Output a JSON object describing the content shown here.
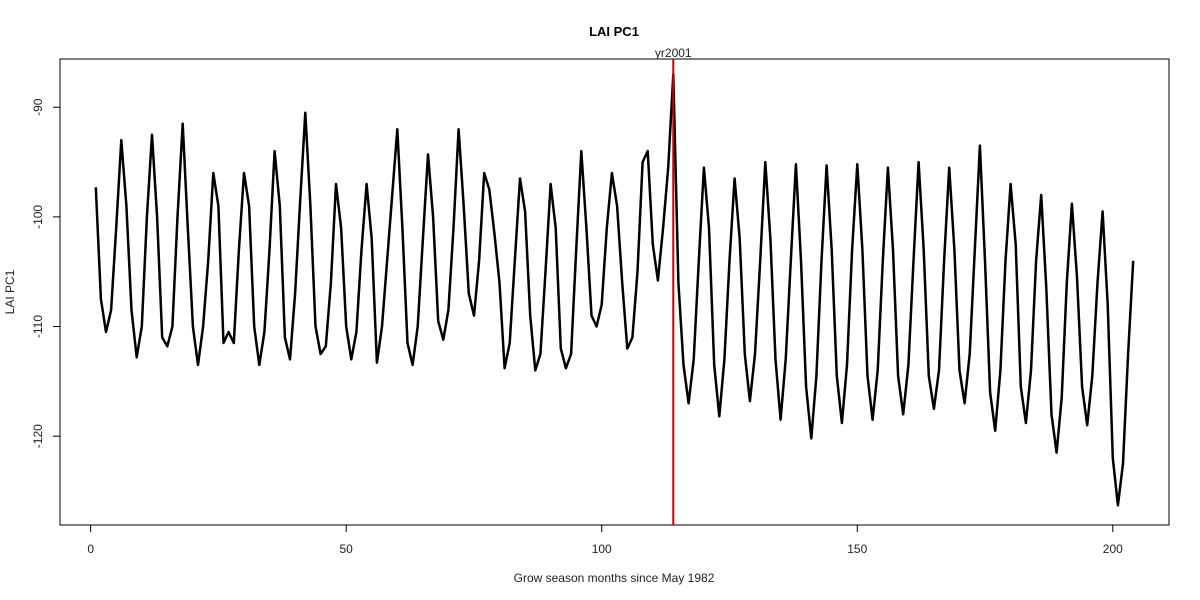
{
  "chart_data": {
    "type": "line",
    "title": "LAI PC1",
    "xlabel": "Grow season months since May 1982",
    "ylabel": "LAI PC1",
    "xlim": [
      -6,
      211
    ],
    "ylim": [
      -128.1,
      -85.6
    ],
    "x_ticks": [
      0,
      50,
      100,
      150,
      200
    ],
    "x_tick_labels": [
      "0",
      "50",
      "100",
      "150",
      "200"
    ],
    "y_ticks": [
      -120,
      -110,
      -100,
      -90
    ],
    "y_tick_labels": [
      "-120",
      "-110",
      "-100",
      "-90"
    ],
    "grid": false,
    "legend": "none",
    "line_color": "#000000",
    "series": [
      {
        "x": [
          1,
          2,
          3,
          4,
          5,
          6,
          7,
          8,
          9,
          10,
          11,
          12,
          13,
          14,
          15,
          16,
          17,
          18,
          19,
          20,
          21,
          22,
          23,
          24,
          25,
          26,
          27,
          28,
          29,
          30,
          31,
          32,
          33,
          34,
          35,
          36,
          37,
          38,
          39,
          40,
          41,
          42,
          43,
          44,
          45,
          46,
          47,
          48,
          49,
          50,
          51,
          52,
          53,
          54,
          55,
          56,
          57,
          58,
          59,
          60,
          61,
          62,
          63,
          64,
          65,
          66,
          67,
          68,
          69,
          70,
          71,
          72,
          73,
          74,
          75,
          76,
          77,
          78,
          79,
          80,
          81,
          82,
          83,
          84,
          85,
          86,
          87,
          88,
          89,
          90,
          91,
          92,
          93,
          94,
          95,
          96,
          97,
          98,
          99,
          100,
          101,
          102,
          103,
          104,
          105,
          106,
          107,
          108,
          109,
          110,
          111,
          112,
          113,
          114,
          115,
          116,
          117,
          118,
          119,
          120,
          121,
          122,
          123,
          124,
          125,
          126,
          127,
          128,
          129,
          130,
          131,
          132,
          133,
          134,
          135,
          136,
          137,
          138,
          139,
          140,
          141,
          142,
          143,
          144,
          145,
          146,
          147,
          148,
          149,
          150,
          151,
          152,
          153,
          154,
          155,
          156,
          157,
          158,
          159,
          160,
          161,
          162,
          163,
          164,
          165,
          166,
          167,
          168,
          169,
          170,
          171,
          172,
          173,
          174,
          175,
          176,
          177,
          178,
          179,
          180,
          181,
          182,
          183,
          184,
          185,
          186,
          187,
          188,
          189,
          190,
          191,
          192,
          193,
          194,
          195,
          196,
          197,
          198,
          199,
          200,
          201,
          202,
          203,
          204
        ],
        "values": [
          -97.3,
          -107.5,
          -110.5,
          -108.5,
          -101.0,
          -93.0,
          -99.0,
          -108.5,
          -112.8,
          -110.0,
          -100.0,
          -92.5,
          -100.0,
          -111.0,
          -111.8,
          -110.0,
          -100.0,
          -91.5,
          -101.0,
          -110.0,
          -113.5,
          -110.0,
          -104.0,
          -96.0,
          -99.0,
          -111.5,
          -110.5,
          -111.5,
          -103.0,
          -96.0,
          -99.0,
          -110.0,
          -113.5,
          -110.5,
          -103.0,
          -94.0,
          -99.0,
          -111.0,
          -113.0,
          -107.0,
          -98.5,
          -90.5,
          -99.0,
          -110.0,
          -112.5,
          -111.8,
          -106.0,
          -97.0,
          -101.0,
          -110.0,
          -113.0,
          -110.5,
          -103.0,
          -97.0,
          -102.0,
          -113.3,
          -110.0,
          -104.0,
          -98.0,
          -92.0,
          -101.0,
          -111.5,
          -113.5,
          -110.0,
          -102.0,
          -94.3,
          -100.0,
          -109.5,
          -111.2,
          -108.5,
          -101.0,
          -92.0,
          -99.0,
          -107.0,
          -109.0,
          -104.0,
          -96.0,
          -97.5,
          -101.5,
          -106.0,
          -113.8,
          -111.5,
          -104.0,
          -96.5,
          -99.5,
          -109.0,
          -114.0,
          -112.5,
          -105.0,
          -97.0,
          -101.0,
          -112.0,
          -113.8,
          -112.5,
          -103.0,
          -94.0,
          -101.0,
          -109.0,
          -110.0,
          -108.0,
          -101.0,
          -96.0,
          -99.0,
          -106.0,
          -112.0,
          -111.0,
          -105.0,
          -95.0,
          -94.0,
          -102.5,
          -105.8,
          -101.0,
          -95.5,
          -87.0,
          -106.0,
          -113.5,
          -117.0,
          -113.0,
          -104.0,
          -95.5,
          -101.0,
          -113.5,
          -118.2,
          -113.0,
          -104.0,
          -96.5,
          -102.0,
          -112.5,
          -116.8,
          -112.5,
          -104.0,
          -95.0,
          -102.0,
          -113.0,
          -118.5,
          -113.0,
          -104.0,
          -95.2,
          -104.0,
          -115.5,
          -120.2,
          -114.5,
          -104.0,
          -95.3,
          -103.0,
          -114.5,
          -118.8,
          -113.5,
          -103.0,
          -95.2,
          -103.0,
          -114.5,
          -118.5,
          -114.0,
          -104.0,
          -95.5,
          -103.0,
          -114.5,
          -118.0,
          -113.5,
          -104.0,
          -95.0,
          -103.0,
          -114.5,
          -117.5,
          -114.0,
          -104.0,
          -95.5,
          -103.0,
          -114.0,
          -117.0,
          -112.5,
          -103.0,
          -93.5,
          -104.0,
          -116.0,
          -119.5,
          -114.0,
          -104.0,
          -97.0,
          -102.5,
          -115.5,
          -118.8,
          -114.0,
          -104.0,
          -98.0,
          -106.5,
          -118.0,
          -121.5,
          -116.5,
          -106.0,
          -98.8,
          -105.5,
          -115.5,
          -119.0,
          -114.5,
          -106.0,
          -99.5,
          -108.0,
          -122.0,
          -126.3,
          -122.5,
          -112.5,
          -104.0
        ]
      }
    ],
    "annotations": [
      {
        "type": "vline",
        "x": 114,
        "label": "yr2001",
        "color": "#cc0000"
      }
    ]
  }
}
